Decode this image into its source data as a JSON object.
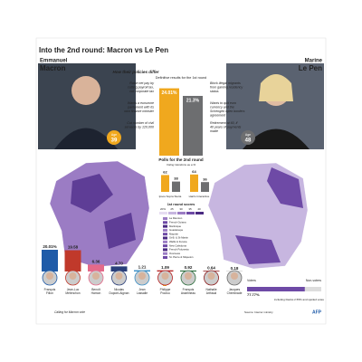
{
  "header": {
    "title": "Into the 2nd round: Macron vs Le Pen"
  },
  "policies_heading": "How their policies differ",
  "finalists": [
    {
      "first": "Emmanuel",
      "last": "Macron",
      "age_label": "Age",
      "age": 39,
      "color": "#f0a81e",
      "policies": [
        "Raise net pay by cutting payroll tax, cut corporate tax",
        "Wants a eurozone parliament with its own finance minister",
        "Cut number of civil servants by 120,000"
      ]
    },
    {
      "first": "Marine",
      "last": "Le Pen",
      "age_label": "Age",
      "age": 48,
      "color": "#6d6e70",
      "policies": [
        "Block illegal migrants from gaining residency status",
        "Wants to quit euro currency and the Schengen open borders agreement",
        "Retirement at 60, if 40 years of payments made"
      ]
    }
  ],
  "first_round": {
    "heading": "Definitive results for the 1st round",
    "values": [
      24.01,
      21.3
    ],
    "value_labels": [
      "24.01%",
      "21.3%"
    ]
  },
  "polls": {
    "heading": "Polls for the 2nd round",
    "subheading": "Voting intentions as a %",
    "items": [
      {
        "name": "Ipsos Sopra Steria",
        "values": [
          62,
          38
        ]
      },
      {
        "name": "Harris Interactive",
        "values": [
          64,
          36
        ]
      }
    ]
  },
  "map_legend": {
    "heading": "1st round scores",
    "ticks": [
      {
        "value": 20,
        "label": "20%"
      },
      25,
      30,
      35,
      40
    ],
    "territories": [
      "La Réunion",
      "French Guiana",
      "Martinique",
      "Guadeloupe",
      "Mayotte",
      "St-B. & St-Martin",
      "Wallis & Futuna",
      "New Caledonia",
      "French Polynesia",
      "Overseas",
      "St. Pierre & Miquelon"
    ]
  },
  "others": {
    "note": "Calling for Macron vote",
    "items": [
      {
        "name": "François Fillon",
        "value": 20.01,
        "label": "20.01%",
        "color": "#1f5ba8"
      },
      {
        "name": "Jean-Luc Mélenchon",
        "value": 19.58,
        "label": "19.58",
        "color": "#c0392b"
      },
      {
        "name": "Benoît Hamon",
        "value": 6.36,
        "label": "6.36",
        "color": "#e46a8a"
      },
      {
        "name": "Nicolas Dupont-Aignan",
        "value": 4.7,
        "label": "4.70",
        "color": "#2a3f7a"
      },
      {
        "name": "Jean Lassalle",
        "value": 1.21,
        "label": "1.21",
        "color": "#3a8fc6"
      },
      {
        "name": "Philippe Poutou",
        "value": 1.09,
        "label": "1.09",
        "color": "#b51f1f"
      },
      {
        "name": "François Asselineau",
        "value": 0.92,
        "label": "0.92",
        "color": "#2d6e3e"
      },
      {
        "name": "Nathalie Arthaud",
        "value": 0.64,
        "label": "0.64",
        "color": "#8b1a1a"
      },
      {
        "name": "Jacques Cheminade",
        "value": 0.18,
        "label": "0.18",
        "color": "#6a6a6a"
      }
    ]
  },
  "turnout": {
    "voters_label": "Voters",
    "nonvoters_label": "Non-voters",
    "value": 77.77,
    "label": "77.77%",
    "note": "including blanks 2.55% and spoiled votes"
  },
  "source": "Source: Interior ministry",
  "credit": "AFP"
}
